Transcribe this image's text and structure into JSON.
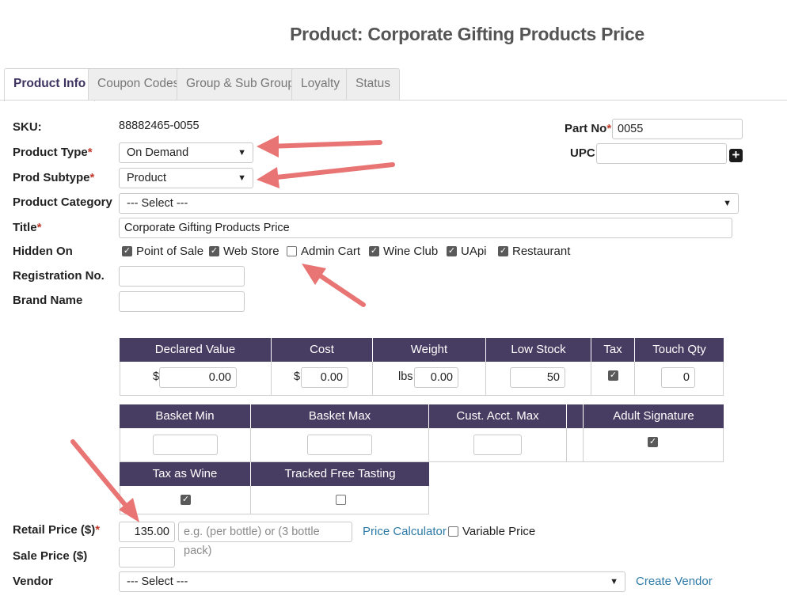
{
  "page": {
    "title": "Product: Corporate Gifting Products Price"
  },
  "tabs": [
    {
      "label": "Product Info",
      "active": true
    },
    {
      "label": "Coupon Codes",
      "active": false
    },
    {
      "label": "Group & Sub Groups",
      "active": false
    },
    {
      "label": "Loyalty",
      "active": false
    },
    {
      "label": "Status",
      "active": false
    }
  ],
  "form": {
    "sku": {
      "label": "SKU:",
      "value": "88882465-0055"
    },
    "part_no": {
      "label": "Part No",
      "value": "0055"
    },
    "upc": {
      "label": "UPC",
      "value": ""
    },
    "product_type": {
      "label": "Product Type",
      "value": "On Demand"
    },
    "prod_subtype": {
      "label": "Prod Subtype",
      "value": "Product"
    },
    "product_category": {
      "label": "Product Category",
      "value": "--- Select ---"
    },
    "title": {
      "label": "Title",
      "value": "Corporate Gifting Products Price"
    },
    "hidden_on": {
      "label": "Hidden On",
      "options": [
        {
          "label": "Point of Sale",
          "checked": true
        },
        {
          "label": "Web Store",
          "checked": true
        },
        {
          "label": "Admin Cart",
          "checked": false
        },
        {
          "label": "Wine Club",
          "checked": true
        },
        {
          "label": "UApi",
          "checked": true
        },
        {
          "label": "Restaurant",
          "checked": true
        }
      ]
    },
    "registration_no": {
      "label": "Registration No.",
      "value": ""
    },
    "brand_name": {
      "label": "Brand Name",
      "value": ""
    },
    "retail_price": {
      "label": "Retail Price ($)",
      "value": "135.00",
      "note_placeholder": "e.g. (per bottle) or (3 bottle pack)"
    },
    "price_calculator": "Price Calculator",
    "variable_price": {
      "label": "Variable Price",
      "checked": false
    },
    "sale_price": {
      "label": "Sale Price ($)",
      "value": ""
    },
    "vendor": {
      "label": "Vendor",
      "value": "--- Select ---"
    },
    "create_vendor": "Create Vendor"
  },
  "grid1": {
    "headers": [
      "Declared Value",
      "Cost",
      "Weight",
      "Low Stock",
      "Tax",
      "Touch Qty"
    ],
    "declared_value": {
      "prefix": "$",
      "value": "0.00"
    },
    "cost": {
      "prefix": "$",
      "value": "0.00"
    },
    "weight": {
      "prefix": "lbs",
      "value": "0.00"
    },
    "low_stock": "50",
    "tax": true,
    "touch_qty": "0"
  },
  "grid2": {
    "headers": [
      "Basket Min",
      "Basket Max",
      "Cust. Acct. Max",
      "",
      "Adult Signature"
    ],
    "adult_signature": true
  },
  "grid3": {
    "headers": [
      "Tax as Wine",
      "Tracked Free Tasting"
    ],
    "tax_as_wine": true,
    "tracked_free_tasting": false
  },
  "colors": {
    "header_bg": "#473d62",
    "arrow": "#e87474",
    "link": "#2d7aa6"
  }
}
